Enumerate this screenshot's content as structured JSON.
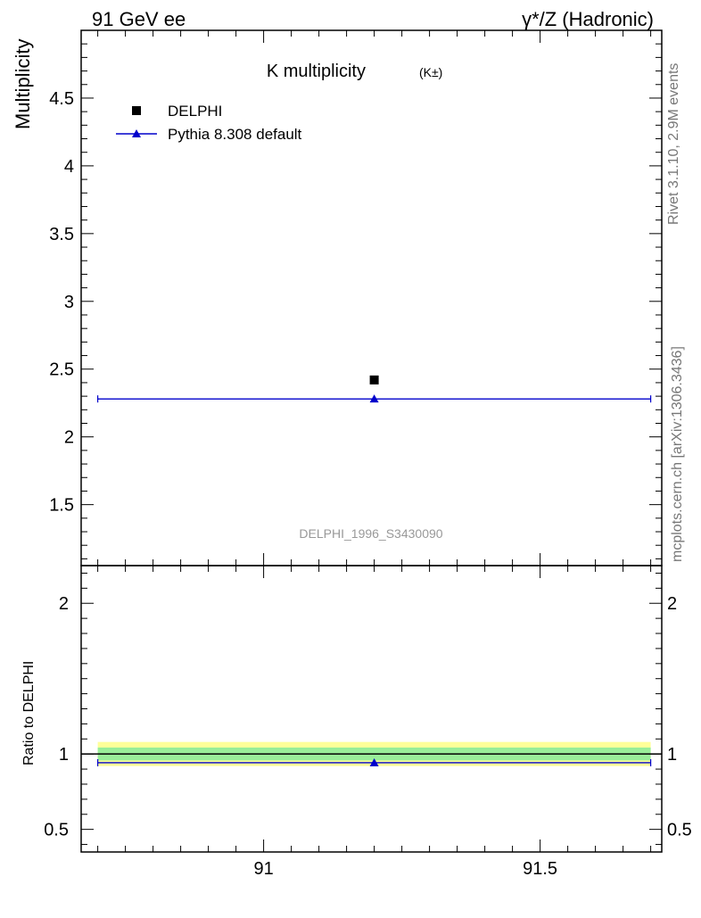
{
  "header": {
    "left": "91 GeV ee",
    "right": "γ*/Z (Hadronic)"
  },
  "side_notes": {
    "rivet": "Rivet 3.1.10,  2.9M events",
    "mcplots": "mcplots.cern.ch [arXiv:1306.3436]"
  },
  "chart_data": [
    {
      "type": "scatter",
      "panel": "main",
      "title": "K multiplicity",
      "title_suffix": "(K±)",
      "xlabel": "",
      "ylabel": "Multiplicity",
      "xlim": [
        90.67,
        91.72
      ],
      "ylim": [
        1.05,
        5.0
      ],
      "yticks": [
        1.5,
        2,
        2.5,
        3,
        3.5,
        4,
        4.5
      ],
      "ytick_labels": [
        "1.5",
        "2",
        "2.5",
        "3",
        "3.5",
        "4",
        "4.5"
      ],
      "legend_position": "top-left",
      "watermark": "DELPHI_1996_S3430090",
      "series": [
        {
          "name": "DELPHI",
          "kind": "points",
          "marker": "square",
          "color": "#000000",
          "x": [
            91.2
          ],
          "y": [
            2.42
          ]
        },
        {
          "name": "Pythia 8.308 default",
          "kind": "histogram",
          "marker": "triangle",
          "color": "#0000cc",
          "bin_edges": [
            90.7,
            91.7
          ],
          "x": [
            91.2
          ],
          "y": [
            2.28
          ]
        }
      ]
    },
    {
      "type": "scatter",
      "panel": "ratio",
      "ylabel": "Ratio to DELPHI",
      "xlim": [
        90.67,
        91.72
      ],
      "ylim": [
        0.35,
        2.25
      ],
      "xticks": [
        91,
        91.5
      ],
      "xtick_labels": [
        "91",
        "91.5"
      ],
      "yticks": [
        0.5,
        1,
        2
      ],
      "ytick_labels": [
        "0.5",
        "1",
        "2"
      ],
      "reference_line": 1.0,
      "bands": [
        {
          "label": "total uncertainty",
          "lo": 0.92,
          "hi": 1.08,
          "color": "#ffff99"
        },
        {
          "label": "stat uncertainty",
          "lo": 0.957,
          "hi": 1.043,
          "color": "#99ee99"
        }
      ],
      "series": [
        {
          "name": "Pythia 8.308 default",
          "kind": "histogram",
          "marker": "triangle",
          "color": "#0000cc",
          "bin_edges": [
            90.7,
            91.7
          ],
          "x": [
            91.2
          ],
          "y": [
            0.942
          ]
        }
      ]
    }
  ]
}
